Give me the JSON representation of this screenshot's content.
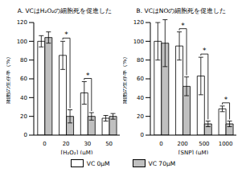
{
  "chart_data": [
    {
      "type": "bar",
      "title": "A. VCはH₂O₂の細胞死を促進した",
      "x_label": "[H₂O₂] (μM)",
      "y_label": "細胞の生存率（%）",
      "categories": [
        "0",
        "20",
        "30",
        "50"
      ],
      "series": [
        {
          "name": "VC 0μM",
          "color": "#ffffff",
          "values": [
            100,
            85,
            45,
            18
          ],
          "errors": [
            6,
            15,
            12,
            3
          ]
        },
        {
          "name": "VC 70μM",
          "color": "#c0c0c0",
          "values": [
            104,
            20,
            20,
            20
          ],
          "errors": [
            6,
            7,
            4,
            3
          ]
        }
      ],
      "ylim": [
        0,
        120
      ],
      "yticks": [
        0,
        20,
        40,
        60,
        80,
        100,
        120
      ],
      "grid": false,
      "legend": "bottom",
      "annotations": [
        {
          "category": "20",
          "text": "*"
        },
        {
          "category": "30",
          "text": "*"
        }
      ]
    },
    {
      "type": "bar",
      "title": "B. VCはNOの細胞死を促進した",
      "x_label": "[SNP] (μM)",
      "y_label": "細胞の生存率（%）",
      "categories": [
        "0",
        "200",
        "500",
        "1000"
      ],
      "series": [
        {
          "name": "VC 0μM",
          "color": "#ffffff",
          "values": [
            100,
            95,
            63,
            28
          ],
          "errors": [
            20,
            15,
            20,
            3
          ]
        },
        {
          "name": "VC 70μM",
          "color": "#c0c0c0",
          "values": [
            98,
            52,
            12,
            12
          ],
          "errors": [
            25,
            10,
            3,
            3
          ]
        }
      ],
      "ylim": [
        0,
        120
      ],
      "yticks": [
        0,
        20,
        40,
        60,
        80,
        100,
        120
      ],
      "grid": false,
      "legend": "bottom",
      "annotations": [
        {
          "category": "200",
          "text": "*"
        },
        {
          "category": "500",
          "text": "*"
        },
        {
          "category": "1000",
          "text": "*"
        }
      ]
    }
  ]
}
